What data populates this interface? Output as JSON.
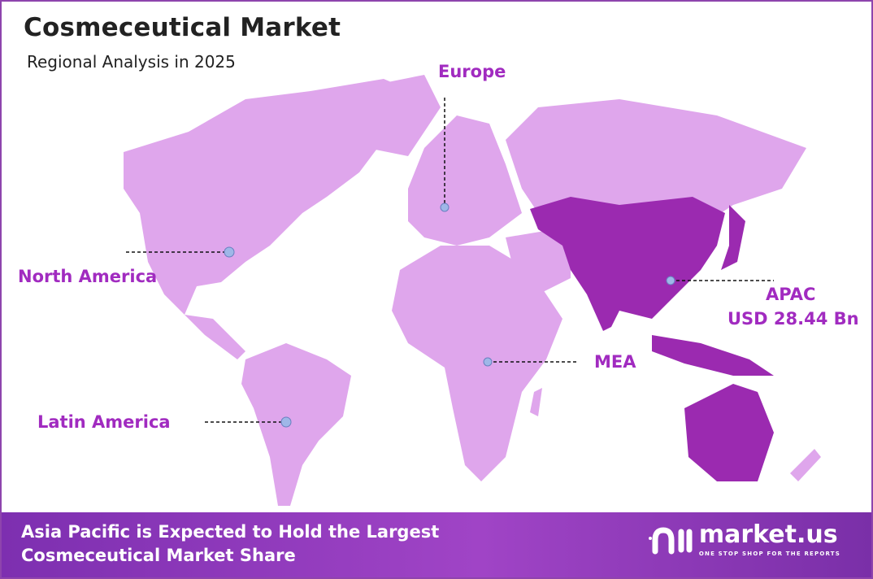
{
  "header": {
    "title": "Cosmeceutical Market",
    "subtitle": "Regional Analysis in 2025"
  },
  "colors": {
    "base_region": "#dfa6ec",
    "highlight_region": "#9b2ab0",
    "label": "#a12bc0",
    "border": "#8e44ad",
    "marker": "#9fb7e8"
  },
  "regions": [
    {
      "name": "Europe",
      "highlighted": false
    },
    {
      "name": "North America",
      "highlighted": false
    },
    {
      "name": "APAC",
      "value": "USD 28.44 Bn",
      "highlighted": true
    },
    {
      "name": "MEA",
      "highlighted": false
    },
    {
      "name": "Latin America",
      "highlighted": false
    }
  ],
  "banner": {
    "line1": "Asia Pacific is Expected to Hold the Largest",
    "line2": "Cosmeceutical Market Share"
  },
  "logo": {
    "name": "market.us",
    "tagline": "ONE STOP SHOP FOR THE REPORTS",
    "icon": "market-us-logo-icon"
  }
}
